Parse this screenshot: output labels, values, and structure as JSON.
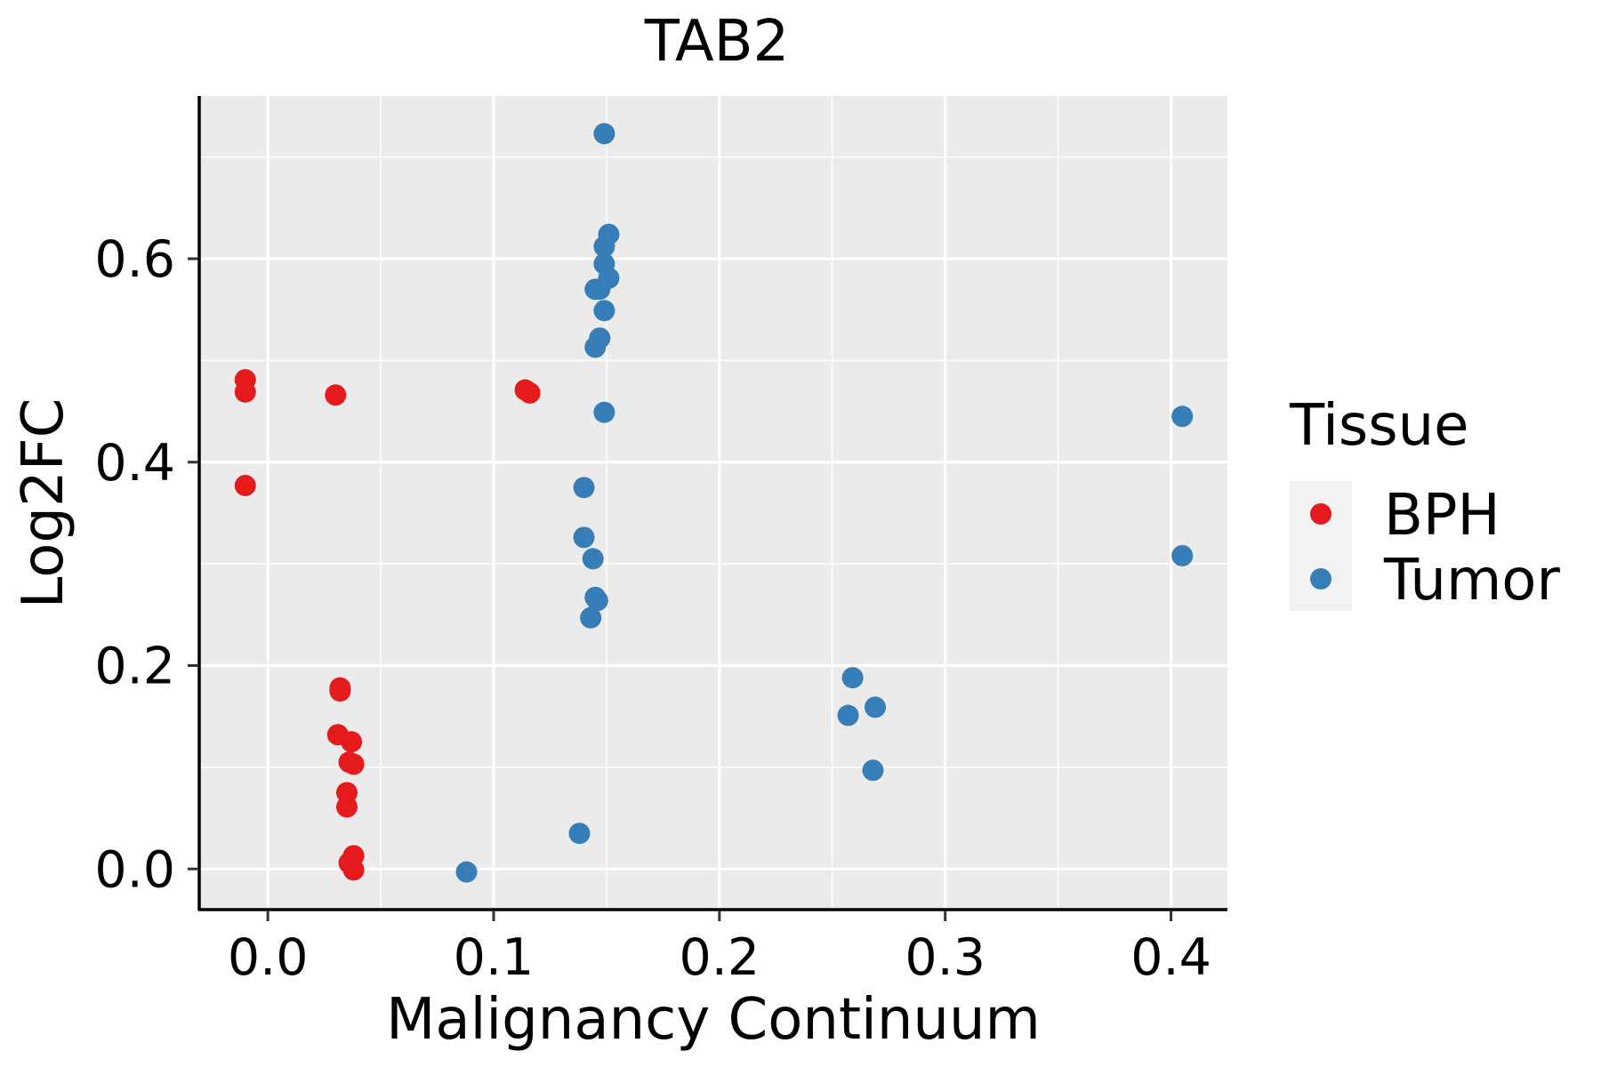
{
  "chart_data": {
    "type": "scatter",
    "title": "TAB2",
    "xlabel": "Malignancy Continuum",
    "ylabel": "Log2FC",
    "xlim": [
      -0.03,
      0.425
    ],
    "ylim": [
      -0.04,
      0.76
    ],
    "x_ticks": [
      {
        "value": 0.0,
        "label": "0.0"
      },
      {
        "value": 0.1,
        "label": "0.1"
      },
      {
        "value": 0.2,
        "label": "0.2"
      },
      {
        "value": 0.3,
        "label": "0.3"
      },
      {
        "value": 0.4,
        "label": "0.4"
      }
    ],
    "y_ticks": [
      {
        "value": 0.0,
        "label": "0.0"
      },
      {
        "value": 0.2,
        "label": "0.2"
      },
      {
        "value": 0.4,
        "label": "0.4"
      },
      {
        "value": 0.6,
        "label": "0.6"
      }
    ],
    "x_minor": [
      0.05,
      0.15,
      0.25,
      0.35
    ],
    "y_minor": [
      0.1,
      0.3,
      0.5,
      0.7
    ],
    "grid": true,
    "legend": {
      "title": "Tissue",
      "position": "right"
    },
    "colors": {
      "panel": "#EBEBEB",
      "grid": "#FFFFFF",
      "axis": "#000000"
    },
    "series": [
      {
        "name": "BPH",
        "color": "#E41A1C",
        "points": [
          [
            -0.01,
            0.481
          ],
          [
            -0.01,
            0.469
          ],
          [
            -0.01,
            0.377
          ],
          [
            0.03,
            0.466
          ],
          [
            0.032,
            0.178
          ],
          [
            0.032,
            0.175
          ],
          [
            0.031,
            0.132
          ],
          [
            0.037,
            0.125
          ],
          [
            0.036,
            0.105
          ],
          [
            0.038,
            0.103
          ],
          [
            0.035,
            0.075
          ],
          [
            0.035,
            0.061
          ],
          [
            0.038,
            0.013
          ],
          [
            0.036,
            0.006
          ],
          [
            0.038,
            -0.001
          ],
          [
            0.114,
            0.471
          ],
          [
            0.116,
            0.468
          ]
        ]
      },
      {
        "name": "Tumor",
        "color": "#377EB8",
        "points": [
          [
            0.149,
            0.723
          ],
          [
            0.151,
            0.624
          ],
          [
            0.149,
            0.612
          ],
          [
            0.149,
            0.595
          ],
          [
            0.151,
            0.581
          ],
          [
            0.145,
            0.57
          ],
          [
            0.147,
            0.57
          ],
          [
            0.149,
            0.549
          ],
          [
            0.147,
            0.522
          ],
          [
            0.145,
            0.513
          ],
          [
            0.149,
            0.449
          ],
          [
            0.14,
            0.375
          ],
          [
            0.14,
            0.326
          ],
          [
            0.144,
            0.305
          ],
          [
            0.145,
            0.267
          ],
          [
            0.146,
            0.264
          ],
          [
            0.143,
            0.247
          ],
          [
            0.138,
            0.035
          ],
          [
            0.088,
            -0.003
          ],
          [
            0.259,
            0.188
          ],
          [
            0.269,
            0.159
          ],
          [
            0.257,
            0.151
          ],
          [
            0.268,
            0.097
          ],
          [
            0.405,
            0.445
          ],
          [
            0.405,
            0.308
          ]
        ]
      }
    ]
  }
}
